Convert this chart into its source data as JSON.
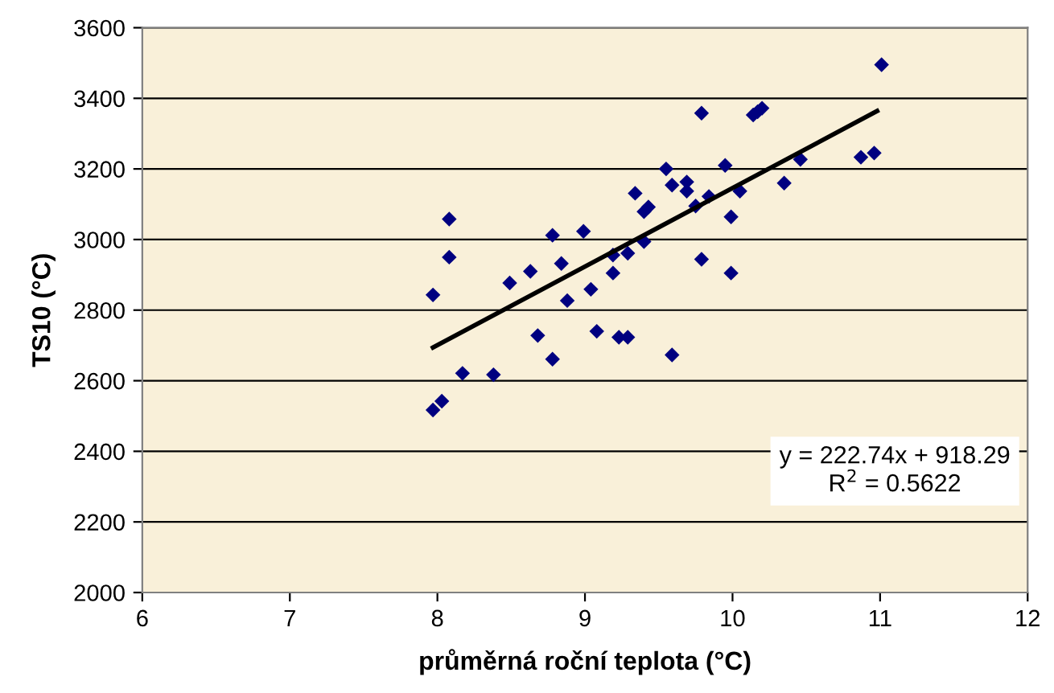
{
  "chart_data": {
    "type": "scatter",
    "xlabel": "průměrná roční teplota (°C)",
    "ylabel": "TS10 (°C)",
    "xlim": [
      6,
      12
    ],
    "xticks": [
      6,
      7,
      8,
      9,
      10,
      11,
      12
    ],
    "ylim": [
      2000,
      3600
    ],
    "yticks": [
      2000,
      2200,
      2400,
      2600,
      2800,
      3000,
      3200,
      3400,
      3600
    ],
    "grid": "y",
    "legend": false,
    "marker": "diamond",
    "annotations": [
      "y = 222.74x + 918.29",
      "R$^{2}$ = 0.5622"
    ],
    "series": [
      {
        "color": "#000080",
        "x": [
          7.97,
          8.08,
          8.08,
          7.97,
          8.03,
          8.17,
          8.38,
          8.49,
          8.63,
          8.68,
          8.78,
          8.78,
          8.84,
          8.88,
          8.99,
          9.04,
          9.08,
          9.19,
          9.19,
          9.23,
          9.29,
          9.29,
          9.34,
          9.4,
          9.4,
          9.43,
          9.55,
          9.59,
          9.59,
          9.69,
          9.69,
          9.75,
          9.79,
          9.79,
          9.84,
          9.95,
          9.99,
          9.99,
          10.05,
          10.14,
          10.17,
          10.2,
          10.35,
          10.46,
          10.87,
          10.96,
          11.01
        ],
        "values": [
          2843,
          3058,
          2950,
          2517,
          2542,
          2621,
          2617,
          2877,
          2910,
          2728,
          3012,
          2661,
          2932,
          2827,
          3023,
          2859,
          2740,
          2956,
          2905,
          2723,
          2723,
          2961,
          3131,
          2994,
          3079,
          3092,
          3200,
          3154,
          2673,
          3163,
          3137,
          3095,
          3358,
          2944,
          3122,
          3210,
          3064,
          2905,
          3137,
          3353,
          3362,
          3372,
          3160,
          3227,
          3233,
          3245,
          3495
        ]
      },
      {
        "type": "line",
        "color": "#000000",
        "line_style": "solid",
        "marker": "none",
        "x": [
          7.97,
          10.98
        ],
        "values": [
          2694,
          3364
        ]
      }
    ]
  }
}
